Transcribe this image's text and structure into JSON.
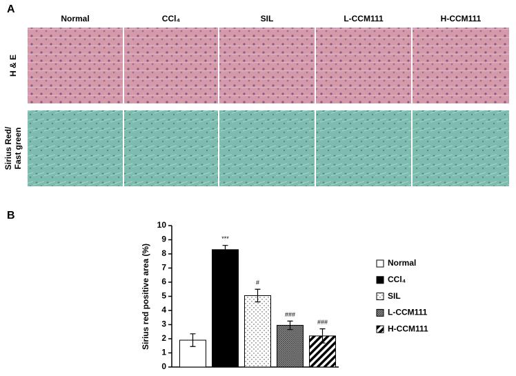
{
  "panel_labels": [
    "A",
    "B"
  ],
  "columns": [
    "Normal",
    "CCl₄",
    "SIL",
    "L-CCM111",
    "H-CCM111"
  ],
  "rows": [
    [
      "H & E"
    ],
    [
      "Sirius Red/",
      "Fast green"
    ]
  ],
  "chart_data": {
    "type": "bar",
    "ylabel": "Sirius red positive area (%)",
    "categories": [
      "Normal",
      "CCl₄",
      "SIL",
      "L-CCM111",
      "H-CCM111"
    ],
    "values": [
      1.9,
      8.3,
      5.05,
      2.95,
      2.2
    ],
    "errors": [
      0.45,
      0.3,
      0.45,
      0.3,
      0.5
    ],
    "annotations": [
      null,
      "***",
      "#",
      "###",
      "###"
    ],
    "patterns": [
      "white",
      "black",
      "dots",
      "grid",
      "stripes"
    ],
    "ylim": [
      0,
      10
    ],
    "yticks": [
      0,
      1,
      2,
      3,
      4,
      5,
      6,
      7,
      8,
      9,
      10
    ]
  }
}
